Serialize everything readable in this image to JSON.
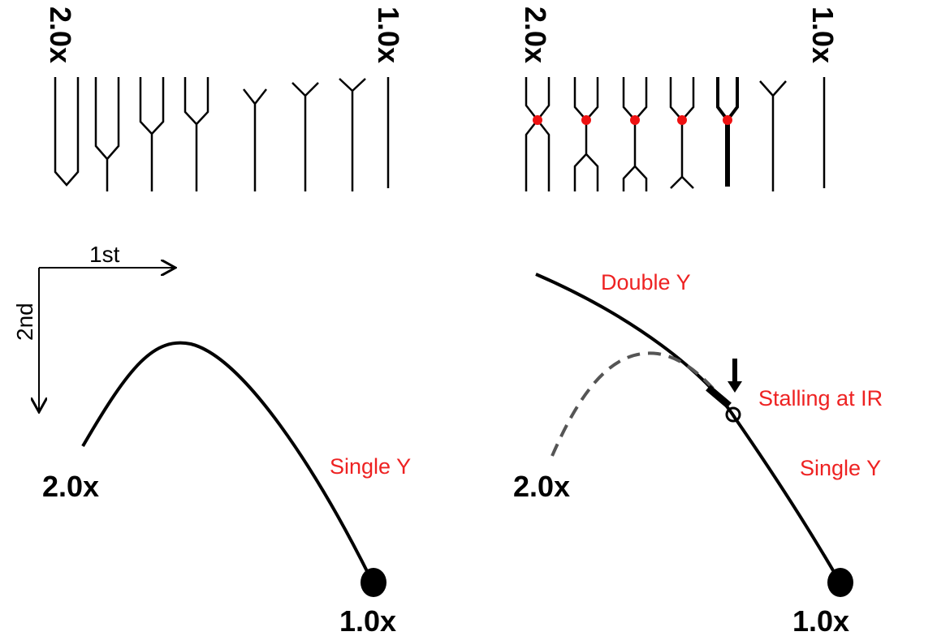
{
  "left_panel": {
    "top_labels": {
      "start": "2.0x",
      "end": "1.0x"
    },
    "axes": {
      "first": "1st",
      "second": "2nd"
    },
    "curve_label": "Single Y",
    "arc_labels": {
      "start": "2.0x",
      "end": "1.0x"
    }
  },
  "right_panel": {
    "top_labels": {
      "start": "2.0x",
      "end": "1.0x"
    },
    "curve_labels": [
      "Double Y",
      "Stalling at IR",
      "Single Y"
    ],
    "arc_labels": {
      "start": "2.0x",
      "end": "1.0x"
    }
  }
}
